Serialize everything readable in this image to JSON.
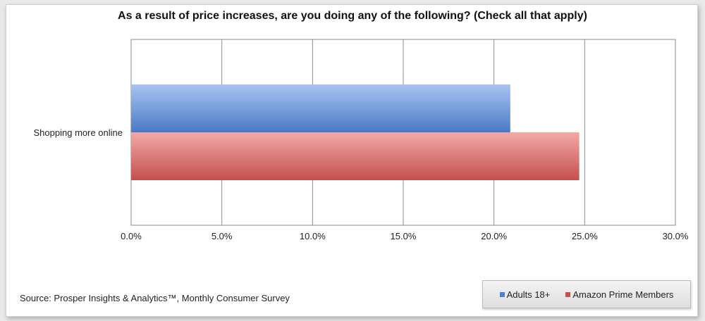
{
  "chart_data": {
    "type": "bar",
    "orientation": "horizontal",
    "title": "As a result of price increases, are you doing any of the following? (Check all that apply)",
    "categories": [
      "Shopping more online"
    ],
    "series": [
      {
        "name": "Adults 18+",
        "values": [
          20.9
        ],
        "color": "#4f80c8"
      },
      {
        "name": "Amazon Prime Members",
        "values": [
          24.7
        ],
        "color": "#c9504d"
      }
    ],
    "xlim": [
      0,
      30
    ],
    "xticks": [
      "0.0%",
      "5.0%",
      "10.0%",
      "15.0%",
      "20.0%",
      "25.0%",
      "30.0%"
    ],
    "grid": "vertical",
    "legend_position": "bottom-right"
  },
  "source": "Source: Prosper Insights & Analytics™, Monthly  Consumer Survey"
}
